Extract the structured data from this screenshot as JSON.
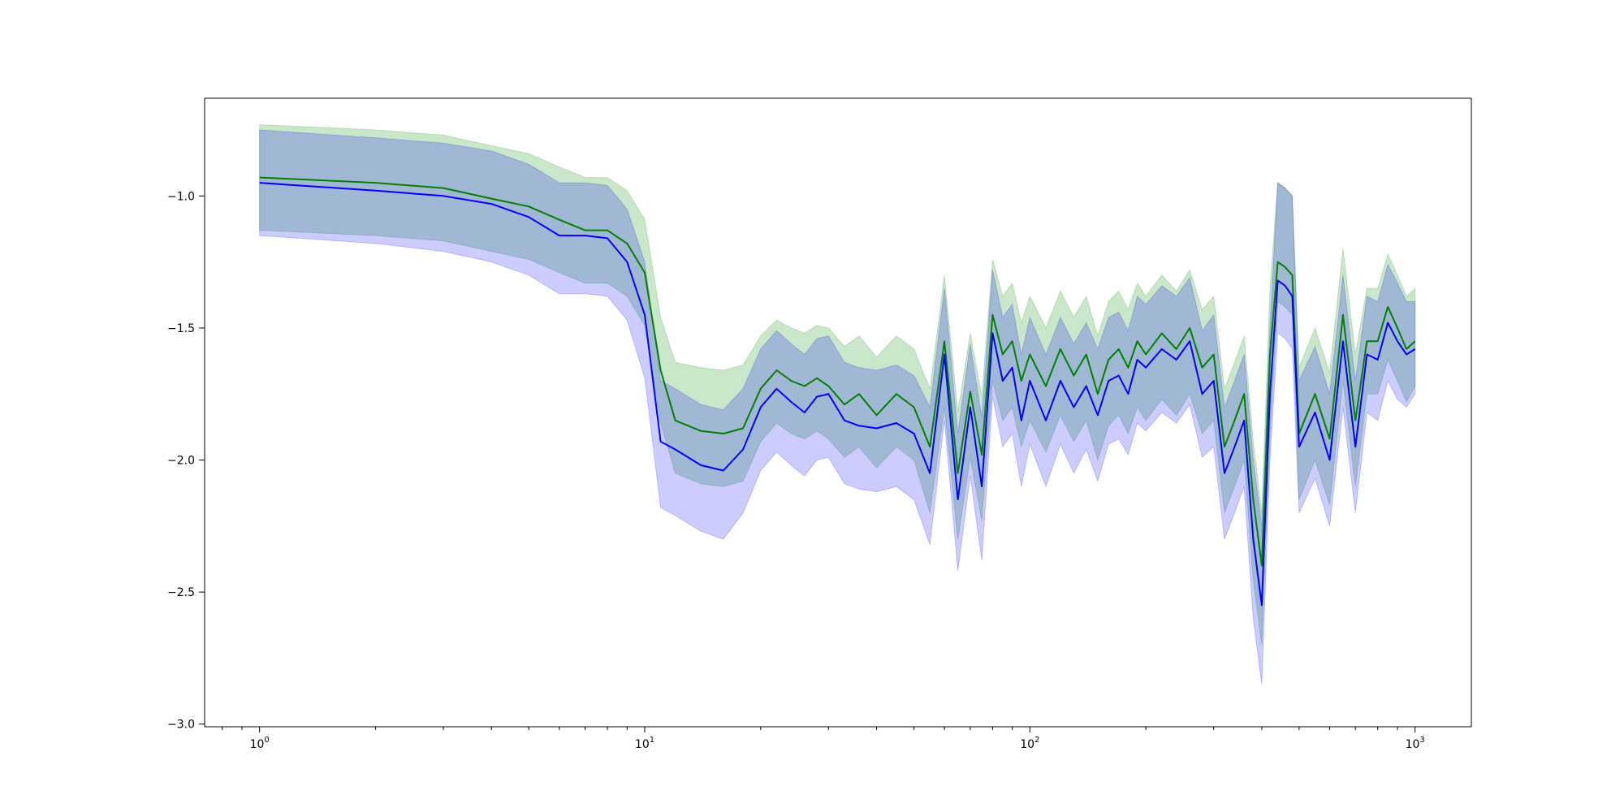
{
  "chart_data": {
    "type": "line",
    "xscale": "log",
    "xlim": [
      0.72,
      1400
    ],
    "ylim": [
      -3.01,
      -0.63
    ],
    "grid": false,
    "legend": "none",
    "xticks": [
      {
        "value": 1,
        "base": "10",
        "exp": "0"
      },
      {
        "value": 10,
        "base": "10",
        "exp": "1"
      },
      {
        "value": 100,
        "base": "10",
        "exp": "2"
      },
      {
        "value": 1000,
        "base": "10",
        "exp": "3"
      }
    ],
    "yticks": [
      {
        "value": -1.0,
        "label": "−1.0"
      },
      {
        "value": -1.5,
        "label": "−1.5"
      },
      {
        "value": -2.0,
        "label": "−2.0"
      },
      {
        "value": -2.5,
        "label": "−2.5"
      },
      {
        "value": -3.0,
        "label": "−3.0"
      }
    ],
    "series": [
      {
        "color": "#008000",
        "band_color": "#2ca02c",
        "band_opacity": 0.25,
        "x": [
          1,
          2,
          3,
          4,
          5,
          6,
          7,
          8,
          9,
          10,
          11,
          12,
          14,
          16,
          18,
          20,
          22,
          24,
          26,
          28,
          30,
          33,
          36,
          40,
          45,
          50,
          55,
          60,
          65,
          70,
          75,
          80,
          85,
          90,
          95,
          100,
          110,
          120,
          130,
          140,
          150,
          160,
          170,
          180,
          190,
          200,
          220,
          240,
          260,
          280,
          300,
          320,
          340,
          360,
          380,
          400,
          420,
          440,
          460,
          480,
          500,
          550,
          600,
          650,
          700,
          750,
          800,
          850,
          900,
          950,
          1000
        ],
        "mean": [
          -0.93,
          -0.95,
          -0.97,
          -1.01,
          -1.04,
          -1.09,
          -1.13,
          -1.13,
          -1.18,
          -1.29,
          -1.66,
          -1.85,
          -1.89,
          -1.9,
          -1.88,
          -1.73,
          -1.66,
          -1.7,
          -1.72,
          -1.69,
          -1.72,
          -1.79,
          -1.75,
          -1.83,
          -1.75,
          -1.8,
          -1.95,
          -1.55,
          -2.05,
          -1.74,
          -1.98,
          -1.45,
          -1.6,
          -1.55,
          -1.7,
          -1.6,
          -1.72,
          -1.58,
          -1.68,
          -1.6,
          -1.75,
          -1.62,
          -1.58,
          -1.65,
          -1.55,
          -1.6,
          -1.52,
          -1.58,
          -1.5,
          -1.65,
          -1.6,
          -1.95,
          -1.85,
          -1.75,
          -2.15,
          -2.4,
          -1.6,
          -1.25,
          -1.27,
          -1.3,
          -1.9,
          -1.75,
          -1.92,
          -1.45,
          -1.85,
          -1.55,
          -1.55,
          -1.42,
          -1.5,
          -1.58,
          -1.55
        ],
        "lower": [
          -1.13,
          -1.15,
          -1.17,
          -1.21,
          -1.24,
          -1.29,
          -1.33,
          -1.33,
          -1.38,
          -1.49,
          -1.86,
          -2.05,
          -2.09,
          -2.1,
          -2.08,
          -1.93,
          -1.86,
          -1.9,
          -1.92,
          -1.89,
          -1.92,
          -1.99,
          -1.95,
          -2.03,
          -1.95,
          -2.0,
          -2.2,
          -1.8,
          -2.3,
          -1.99,
          -2.23,
          -1.7,
          -1.85,
          -1.8,
          -1.95,
          -1.85,
          -1.97,
          -1.83,
          -1.93,
          -1.85,
          -2.0,
          -1.87,
          -1.83,
          -1.9,
          -1.8,
          -1.85,
          -1.77,
          -1.83,
          -1.75,
          -1.9,
          -1.85,
          -2.2,
          -2.1,
          -2.0,
          -2.45,
          -2.7,
          -1.9,
          -1.4,
          -1.42,
          -1.45,
          -2.15,
          -2.0,
          -2.17,
          -1.7,
          -2.1,
          -1.75,
          -1.75,
          -1.62,
          -1.7,
          -1.78,
          -1.72
        ],
        "upper": [
          -0.73,
          -0.75,
          -0.77,
          -0.81,
          -0.84,
          -0.89,
          -0.93,
          -0.93,
          -0.98,
          -1.09,
          -1.46,
          -1.63,
          -1.65,
          -1.66,
          -1.64,
          -1.53,
          -1.47,
          -1.5,
          -1.52,
          -1.49,
          -1.5,
          -1.57,
          -1.53,
          -1.61,
          -1.53,
          -1.58,
          -1.73,
          -1.3,
          -1.82,
          -1.52,
          -1.76,
          -1.24,
          -1.38,
          -1.33,
          -1.48,
          -1.38,
          -1.5,
          -1.36,
          -1.46,
          -1.38,
          -1.53,
          -1.4,
          -1.36,
          -1.43,
          -1.33,
          -1.38,
          -1.3,
          -1.36,
          -1.28,
          -1.43,
          -1.38,
          -1.73,
          -1.63,
          -1.53,
          -1.93,
          -2.2,
          -1.35,
          -0.95,
          -0.97,
          -1.0,
          -1.65,
          -1.5,
          -1.67,
          -1.2,
          -1.6,
          -1.35,
          -1.35,
          -1.22,
          -1.3,
          -1.38,
          -1.35
        ]
      },
      {
        "color": "#0000ff",
        "band_color": "#0000ff",
        "band_opacity": 0.2,
        "x": [
          1,
          2,
          3,
          4,
          5,
          6,
          7,
          8,
          9,
          10,
          11,
          12,
          14,
          16,
          18,
          20,
          22,
          24,
          26,
          28,
          30,
          33,
          36,
          40,
          45,
          50,
          55,
          60,
          65,
          70,
          75,
          80,
          85,
          90,
          95,
          100,
          110,
          120,
          130,
          140,
          150,
          160,
          170,
          180,
          190,
          200,
          220,
          240,
          260,
          280,
          300,
          320,
          340,
          360,
          380,
          400,
          420,
          440,
          460,
          480,
          500,
          550,
          600,
          650,
          700,
          750,
          800,
          850,
          900,
          950,
          1000
        ],
        "mean": [
          -0.95,
          -0.98,
          -1.0,
          -1.03,
          -1.08,
          -1.15,
          -1.15,
          -1.16,
          -1.25,
          -1.45,
          -1.93,
          -1.96,
          -2.02,
          -2.04,
          -1.96,
          -1.8,
          -1.73,
          -1.78,
          -1.82,
          -1.76,
          -1.75,
          -1.85,
          -1.87,
          -1.88,
          -1.86,
          -1.9,
          -2.05,
          -1.6,
          -2.15,
          -1.8,
          -2.1,
          -1.52,
          -1.7,
          -1.65,
          -1.85,
          -1.7,
          -1.85,
          -1.7,
          -1.8,
          -1.72,
          -1.83,
          -1.7,
          -1.68,
          -1.75,
          -1.62,
          -1.65,
          -1.58,
          -1.62,
          -1.55,
          -1.75,
          -1.7,
          -2.05,
          -1.95,
          -1.85,
          -2.3,
          -2.55,
          -1.75,
          -1.32,
          -1.34,
          -1.38,
          -1.95,
          -1.82,
          -2.0,
          -1.55,
          -1.95,
          -1.6,
          -1.62,
          -1.48,
          -1.55,
          -1.6,
          -1.58
        ],
        "lower": [
          -1.15,
          -1.18,
          -1.21,
          -1.25,
          -1.3,
          -1.37,
          -1.37,
          -1.38,
          -1.47,
          -1.69,
          -2.18,
          -2.21,
          -2.27,
          -2.3,
          -2.2,
          -2.04,
          -1.97,
          -2.02,
          -2.06,
          -2.0,
          -1.99,
          -2.09,
          -2.11,
          -2.12,
          -2.1,
          -2.15,
          -2.32,
          -1.85,
          -2.42,
          -2.06,
          -2.38,
          -1.76,
          -1.95,
          -1.9,
          -2.1,
          -1.94,
          -2.1,
          -1.94,
          -2.05,
          -1.96,
          -2.08,
          -1.94,
          -1.92,
          -1.98,
          -1.86,
          -1.89,
          -1.82,
          -1.86,
          -1.79,
          -1.99,
          -1.95,
          -2.3,
          -2.2,
          -2.1,
          -2.6,
          -2.85,
          -2.0,
          -1.52,
          -1.54,
          -1.58,
          -2.2,
          -2.07,
          -2.25,
          -1.8,
          -2.2,
          -1.82,
          -1.85,
          -1.7,
          -1.77,
          -1.8,
          -1.75
        ],
        "upper": [
          -0.75,
          -0.78,
          -0.8,
          -0.83,
          -0.88,
          -0.95,
          -0.95,
          -0.96,
          -1.05,
          -1.25,
          -1.7,
          -1.73,
          -1.79,
          -1.81,
          -1.73,
          -1.58,
          -1.51,
          -1.56,
          -1.6,
          -1.54,
          -1.53,
          -1.63,
          -1.65,
          -1.66,
          -1.64,
          -1.68,
          -1.8,
          -1.35,
          -1.9,
          -1.56,
          -1.84,
          -1.28,
          -1.46,
          -1.41,
          -1.6,
          -1.46,
          -1.6,
          -1.46,
          -1.56,
          -1.48,
          -1.58,
          -1.46,
          -1.44,
          -1.51,
          -1.38,
          -1.41,
          -1.34,
          -1.38,
          -1.31,
          -1.51,
          -1.45,
          -1.8,
          -1.7,
          -1.6,
          -2.0,
          -2.25,
          -1.5,
          -0.95,
          -0.97,
          -1.0,
          -1.7,
          -1.57,
          -1.75,
          -1.3,
          -1.7,
          -1.38,
          -1.4,
          -1.26,
          -1.33,
          -1.4,
          -1.4
        ]
      }
    ]
  }
}
